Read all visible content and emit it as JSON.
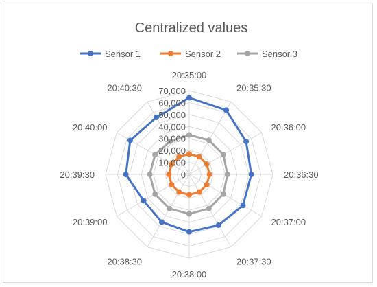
{
  "chart_data": {
    "type": "radar",
    "title": "Centralized values",
    "legend_position": "top",
    "grid": true,
    "categories": [
      "20:35:00",
      "20:35:30",
      "20:36:00",
      "20:36:30",
      "20:37:00",
      "20:37:30",
      "20:38:00",
      "20:38:30",
      "20:39:00",
      "20:39:30",
      "20:40:00",
      "20:40:30"
    ],
    "rlim": [
      0,
      70000
    ],
    "ticks": [
      0,
      10000,
      20000,
      30000,
      40000,
      50000,
      60000,
      70000
    ],
    "tick_labels": [
      "0",
      "10,000",
      "20,000",
      "30,000",
      "40,000",
      "50,000",
      "60,000",
      "70,000"
    ],
    "series": [
      {
        "name": "Sensor 1",
        "color": "#4472c4",
        "values": [
          64000,
          62000,
          55000,
          52000,
          52000,
          49000,
          48000,
          46000,
          44000,
          53000,
          57000,
          55000
        ]
      },
      {
        "name": "Sensor 2",
        "color": "#ed7d31",
        "values": [
          17000,
          17000,
          17000,
          17000,
          17000,
          17000,
          17000,
          17000,
          17000,
          17000,
          17000,
          17000
        ]
      },
      {
        "name": "Sensor 3",
        "color": "#a5a5a5",
        "values": [
          33000,
          33000,
          33000,
          32000,
          33000,
          33000,
          33000,
          33000,
          33000,
          33000,
          33000,
          32000
        ]
      }
    ]
  }
}
